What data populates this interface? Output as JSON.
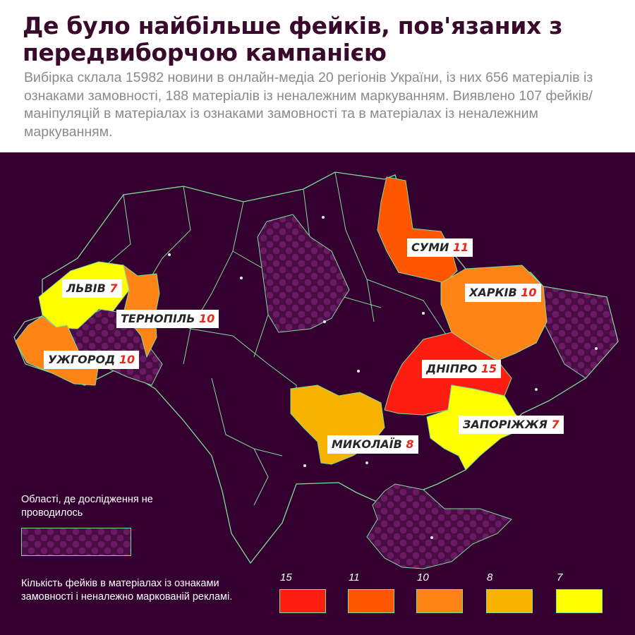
{
  "title": "Де було найбільше фейків, пов'язаних з передвиборчою кампанією",
  "subtitle": "Вибірка склала 15982 новини в онлайн-медіа 20 регіонів України, із них 656 матеріалів із ознаками замовності, 188 матеріалів із неналежним маркуванням. Виявлено 107 фейків/маніпуляцій в матеріалах із ознаками замовності та в матеріалах із неналежним маркуванням.",
  "colors": {
    "background": "#330030",
    "borders": "#7fdc9a",
    "c15": "#ff1d12",
    "c11": "#ff5600",
    "c10": "#ff8415",
    "c8": "#f8b300",
    "c7": "#ffff00",
    "not_studied_pattern": "#6a1a62"
  },
  "regions": [
    {
      "name": "ЛЬВІВ",
      "value": 7
    },
    {
      "name": "ТЕРНОПІЛЬ",
      "value": 10
    },
    {
      "name": "УЖГОРОД",
      "value": 10
    },
    {
      "name": "СУМИ",
      "value": 11
    },
    {
      "name": "ХАРКІВ",
      "value": 10
    },
    {
      "name": "ДНІПРО",
      "value": 15
    },
    {
      "name": "ЗАПОРІЖЖЯ",
      "value": 7
    },
    {
      "name": "МИКОЛАЇВ",
      "value": 8
    }
  ],
  "legend": {
    "not_studied": "Області, де дослідження не проводилось",
    "scale_title": "Кількість фейків в матеріалах із ознаками замовності і неналежно маркованій рекламі.",
    "scale": [
      {
        "value": "15",
        "color": "#ff1d12"
      },
      {
        "value": "11",
        "color": "#ff5600"
      },
      {
        "value": "10",
        "color": "#ff8415"
      },
      {
        "value": "8",
        "color": "#f8b300"
      },
      {
        "value": "7",
        "color": "#ffff00"
      }
    ]
  }
}
